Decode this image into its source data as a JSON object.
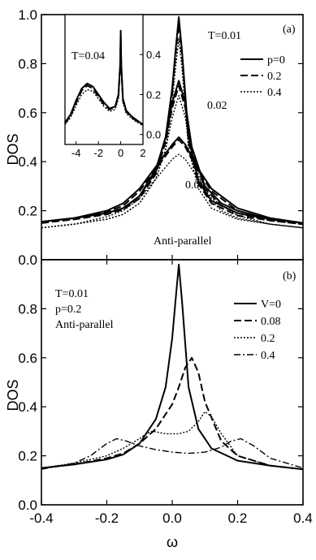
{
  "chart_data": [
    {
      "type": "line",
      "panel_label": "(a)",
      "xlim": [
        -0.4,
        0.4
      ],
      "ylim": [
        0.0,
        1.0
      ],
      "ylabel": "DOS",
      "y_ticks": [
        "0.0",
        "0.2",
        "0.4",
        "0.6",
        "0.8",
        "1.0"
      ],
      "annotations": [
        "T=0.01",
        "0.02",
        "0.04",
        "Anti-parallel"
      ],
      "legend": [
        "p=0",
        "0.2",
        "0.4"
      ],
      "legend_position": "top-right",
      "series": [
        {
          "name": "p=0",
          "temperature": "T=0.01",
          "x": [
            -0.4,
            -0.3,
            -0.2,
            -0.15,
            -0.1,
            -0.05,
            -0.02,
            0.0,
            0.01,
            0.02,
            0.03,
            0.05,
            0.08,
            0.12,
            0.2,
            0.3,
            0.4
          ],
          "y": [
            0.155,
            0.17,
            0.19,
            0.21,
            0.26,
            0.36,
            0.5,
            0.7,
            0.85,
            0.99,
            0.85,
            0.5,
            0.32,
            0.24,
            0.19,
            0.165,
            0.15
          ]
        },
        {
          "name": "0.2",
          "temperature": "T=0.01",
          "x": [
            -0.4,
            -0.3,
            -0.2,
            -0.15,
            -0.1,
            -0.05,
            -0.02,
            0.0,
            0.01,
            0.02,
            0.03,
            0.05,
            0.08,
            0.12,
            0.2,
            0.3,
            0.4
          ],
          "y": [
            0.15,
            0.165,
            0.185,
            0.205,
            0.25,
            0.35,
            0.48,
            0.68,
            0.83,
            0.96,
            0.83,
            0.48,
            0.31,
            0.23,
            0.18,
            0.16,
            0.145
          ]
        },
        {
          "name": "0.4",
          "temperature": "T=0.01",
          "x": [
            -0.4,
            -0.3,
            -0.2,
            -0.15,
            -0.1,
            -0.05,
            -0.02,
            0.0,
            0.01,
            0.02,
            0.03,
            0.05,
            0.08,
            0.12,
            0.2,
            0.3,
            0.4
          ],
          "y": [
            0.13,
            0.145,
            0.165,
            0.185,
            0.23,
            0.33,
            0.45,
            0.64,
            0.78,
            0.9,
            0.78,
            0.45,
            0.29,
            0.21,
            0.165,
            0.145,
            0.13
          ]
        },
        {
          "name": "p=0",
          "temperature": "T=0.02",
          "x": [
            -0.4,
            -0.3,
            -0.2,
            -0.15,
            -0.1,
            -0.05,
            -0.02,
            0.0,
            0.02,
            0.04,
            0.06,
            0.1,
            0.15,
            0.2,
            0.3,
            0.4
          ],
          "y": [
            0.155,
            0.17,
            0.19,
            0.21,
            0.26,
            0.37,
            0.5,
            0.64,
            0.73,
            0.64,
            0.46,
            0.3,
            0.23,
            0.2,
            0.165,
            0.15
          ]
        },
        {
          "name": "0.2",
          "temperature": "T=0.02",
          "x": [
            -0.4,
            -0.3,
            -0.2,
            -0.15,
            -0.1,
            -0.05,
            -0.02,
            0.0,
            0.02,
            0.04,
            0.06,
            0.1,
            0.15,
            0.2,
            0.3,
            0.4
          ],
          "y": [
            0.15,
            0.165,
            0.185,
            0.205,
            0.25,
            0.36,
            0.48,
            0.62,
            0.71,
            0.62,
            0.44,
            0.29,
            0.22,
            0.19,
            0.16,
            0.145
          ]
        },
        {
          "name": "0.4",
          "temperature": "T=0.02",
          "x": [
            -0.4,
            -0.3,
            -0.2,
            -0.15,
            -0.1,
            -0.05,
            -0.02,
            0.0,
            0.02,
            0.04,
            0.06,
            0.1,
            0.15,
            0.2,
            0.3,
            0.4
          ],
          "y": [
            0.13,
            0.145,
            0.165,
            0.185,
            0.23,
            0.33,
            0.45,
            0.58,
            0.67,
            0.58,
            0.42,
            0.27,
            0.2,
            0.17,
            0.145,
            0.13
          ]
        },
        {
          "name": "p=0",
          "temperature": "T=0.04",
          "x": [
            -0.4,
            -0.3,
            -0.2,
            -0.15,
            -0.1,
            -0.05,
            0.0,
            0.02,
            0.04,
            0.08,
            0.12,
            0.2,
            0.3,
            0.4
          ],
          "y": [
            0.155,
            0.17,
            0.2,
            0.23,
            0.29,
            0.38,
            0.47,
            0.5,
            0.47,
            0.37,
            0.29,
            0.21,
            0.17,
            0.15
          ]
        },
        {
          "name": "0.2",
          "temperature": "T=0.04",
          "x": [
            -0.4,
            -0.3,
            -0.2,
            -0.15,
            -0.1,
            -0.05,
            0.0,
            0.02,
            0.04,
            0.08,
            0.12,
            0.2,
            0.3,
            0.4
          ],
          "y": [
            0.15,
            0.165,
            0.195,
            0.22,
            0.28,
            0.37,
            0.46,
            0.49,
            0.46,
            0.36,
            0.28,
            0.2,
            0.165,
            0.145
          ]
        },
        {
          "name": "0.4",
          "temperature": "T=0.04",
          "x": [
            -0.4,
            -0.3,
            -0.2,
            -0.15,
            -0.1,
            -0.05,
            0.0,
            0.02,
            0.04,
            0.08,
            0.12,
            0.2,
            0.3,
            0.4
          ],
          "y": [
            0.13,
            0.145,
            0.175,
            0.2,
            0.25,
            0.33,
            0.41,
            0.43,
            0.41,
            0.33,
            0.25,
            0.18,
            0.145,
            0.13
          ]
        }
      ],
      "inset": {
        "annotation": "T=0.04",
        "xlim": [
          -5,
          2
        ],
        "ylim": [
          -0.05,
          0.6
        ],
        "x_ticks": [
          "-4",
          "-2",
          "0",
          "2"
        ],
        "y_ticks": [
          "0.0",
          "0.2",
          "0.4"
        ],
        "series": [
          {
            "name": "p=0",
            "x": [
              -5,
              -4.5,
              -4,
              -3.5,
              -3,
              -2.5,
              -2,
              -1.5,
              -1,
              -0.5,
              -0.2,
              -0.05,
              0.0,
              0.05,
              0.2,
              0.5,
              1,
              1.5,
              2
            ],
            "y": [
              0.06,
              0.1,
              0.17,
              0.23,
              0.255,
              0.24,
              0.2,
              0.16,
              0.13,
              0.14,
              0.2,
              0.35,
              0.52,
              0.35,
              0.18,
              0.12,
              0.09,
              0.07,
              0.05
            ]
          },
          {
            "name": "0.2",
            "x": [
              -5,
              -4.5,
              -4,
              -3.5,
              -3,
              -2.5,
              -2,
              -1.5,
              -1,
              -0.5,
              -0.2,
              -0.05,
              0.0,
              0.05,
              0.2,
              0.5,
              1,
              1.5,
              2
            ],
            "y": [
              0.055,
              0.095,
              0.16,
              0.22,
              0.245,
              0.23,
              0.19,
              0.15,
              0.125,
              0.135,
              0.19,
              0.34,
              0.5,
              0.34,
              0.17,
              0.115,
              0.085,
              0.065,
              0.048
            ]
          },
          {
            "name": "0.4",
            "x": [
              -5,
              -4.5,
              -4,
              -3.5,
              -3,
              -2.5,
              -2,
              -1.5,
              -1,
              -0.5,
              -0.2,
              -0.05,
              0.0,
              0.05,
              0.2,
              0.5,
              1,
              1.5,
              2
            ],
            "y": [
              0.05,
              0.085,
              0.145,
              0.2,
              0.225,
              0.215,
              0.18,
              0.14,
              0.115,
              0.125,
              0.18,
              0.32,
              0.47,
              0.32,
              0.16,
              0.105,
              0.08,
              0.06,
              0.045
            ]
          }
        ]
      }
    },
    {
      "type": "line",
      "panel_label": "(b)",
      "xlim": [
        -0.4,
        0.4
      ],
      "ylim": [
        0.0,
        1.0
      ],
      "xlabel": "ω",
      "ylabel": "DOS",
      "x_ticks": [
        "-0.4",
        "-0.2",
        "0.0",
        "0.2",
        "0.4"
      ],
      "y_ticks": [
        "0.0",
        "0.2",
        "0.4",
        "0.6",
        "0.8"
      ],
      "annotations": [
        "T=0.01",
        "p=0.2",
        "Anti-parallel"
      ],
      "legend": [
        "V=0",
        "0.08",
        "0.2",
        "0.4"
      ],
      "legend_position": "top-right",
      "series": [
        {
          "name": "V=0",
          "x": [
            -0.4,
            -0.3,
            -0.2,
            -0.15,
            -0.1,
            -0.05,
            -0.02,
            0.0,
            0.01,
            0.02,
            0.03,
            0.05,
            0.08,
            0.12,
            0.2,
            0.3,
            0.4
          ],
          "y": [
            0.15,
            0.165,
            0.185,
            0.205,
            0.25,
            0.35,
            0.48,
            0.68,
            0.83,
            0.98,
            0.83,
            0.48,
            0.31,
            0.23,
            0.18,
            0.16,
            0.145
          ]
        },
        {
          "name": "0.08",
          "x": [
            -0.4,
            -0.3,
            -0.2,
            -0.15,
            -0.1,
            -0.05,
            0.0,
            0.02,
            0.04,
            0.06,
            0.08,
            0.1,
            0.15,
            0.2,
            0.3,
            0.4
          ],
          "y": [
            0.15,
            0.165,
            0.19,
            0.21,
            0.25,
            0.31,
            0.41,
            0.48,
            0.56,
            0.6,
            0.54,
            0.42,
            0.26,
            0.2,
            0.16,
            0.145
          ]
        },
        {
          "name": "0.2",
          "x": [
            -0.4,
            -0.3,
            -0.2,
            -0.15,
            -0.1,
            -0.08,
            -0.06,
            -0.04,
            -0.02,
            0.0,
            0.02,
            0.05,
            0.08,
            0.1,
            0.12,
            0.15,
            0.2,
            0.3,
            0.4
          ],
          "y": [
            0.15,
            0.17,
            0.2,
            0.23,
            0.27,
            0.29,
            0.3,
            0.295,
            0.29,
            0.29,
            0.29,
            0.3,
            0.34,
            0.38,
            0.36,
            0.29,
            0.2,
            0.16,
            0.145
          ]
        },
        {
          "name": "0.4",
          "x": [
            -0.4,
            -0.3,
            -0.25,
            -0.2,
            -0.17,
            -0.14,
            -0.1,
            -0.05,
            0.0,
            0.05,
            0.1,
            0.15,
            0.18,
            0.21,
            0.25,
            0.3,
            0.4
          ],
          "y": [
            0.145,
            0.17,
            0.2,
            0.25,
            0.27,
            0.26,
            0.24,
            0.225,
            0.215,
            0.21,
            0.215,
            0.235,
            0.26,
            0.27,
            0.24,
            0.19,
            0.15
          ]
        }
      ]
    }
  ]
}
